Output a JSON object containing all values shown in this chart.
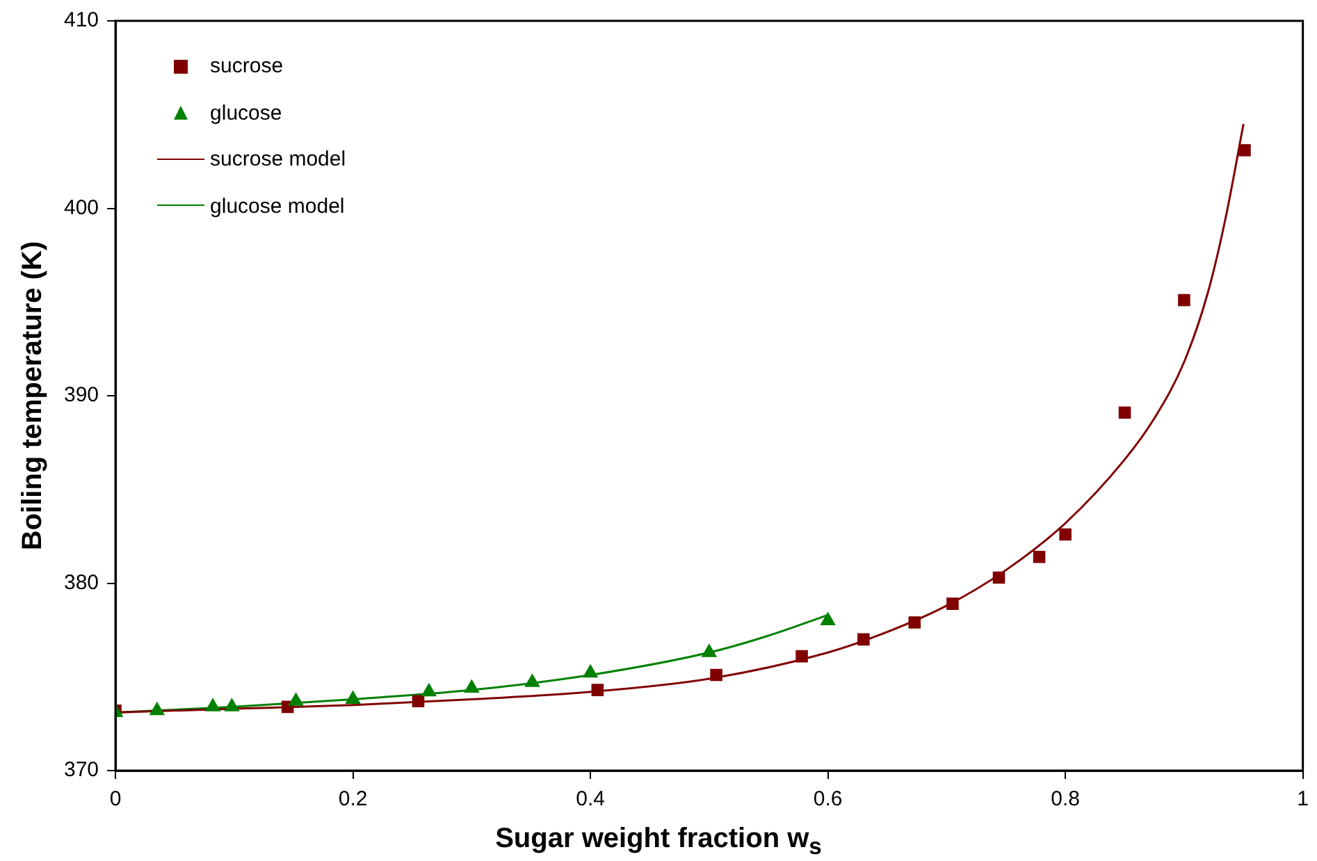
{
  "chart_data": {
    "type": "scatter",
    "xlabel": "Sugar weight fraction w$_{s}$",
    "ylabel": "Boiling temperature (K)",
    "xlim": [
      0,
      1
    ],
    "xticks": [
      0,
      0.2,
      0.4,
      0.6,
      0.8,
      1
    ],
    "ylim": [
      370,
      410
    ],
    "yticks": [
      370,
      380,
      390,
      400,
      410
    ],
    "grid": false,
    "legend": "top left",
    "series": [
      {
        "name": "sucrose",
        "type": "scatter",
        "marker": "square",
        "color": "#800000",
        "x": [
          0,
          0.145,
          0.255,
          0.406,
          0.506,
          0.578,
          0.63,
          0.673,
          0.705,
          0.744,
          0.778,
          0.8,
          0.85,
          0.9,
          0.951
        ],
        "values": [
          373.2,
          373.4,
          373.7,
          374.3,
          375.1,
          376.1,
          377.0,
          377.9,
          378.9,
          380.3,
          381.4,
          382.6,
          389.1,
          395.1,
          403.1
        ]
      },
      {
        "name": "glucose",
        "type": "scatter",
        "marker": "triangle",
        "color": "#008000",
        "x": [
          0,
          0.035,
          0.082,
          0.098,
          0.152,
          0.2,
          0.264,
          0.3,
          0.351,
          0.4,
          0.5,
          0.6
        ],
        "values": [
          373.1,
          373.2,
          373.4,
          373.4,
          373.7,
          373.8,
          374.2,
          374.4,
          374.7,
          375.2,
          376.3,
          378.0
        ]
      },
      {
        "name": "sucrose model",
        "type": "line",
        "marker": "none",
        "color": "#800000",
        "x": [
          0,
          0.1,
          0.2,
          0.3,
          0.4,
          0.5,
          0.6,
          0.65,
          0.7,
          0.75,
          0.8,
          0.85,
          0.875,
          0.9,
          0.92,
          0.935,
          0.95
        ],
        "values": [
          373.1,
          373.3,
          373.5,
          373.8,
          374.2,
          374.9,
          376.3,
          377.4,
          378.8,
          380.7,
          383.2,
          386.6,
          388.8,
          391.8,
          395.5,
          399.5,
          404.5
        ]
      },
      {
        "name": "glucose model",
        "type": "line",
        "marker": "none",
        "color": "#008000",
        "x": [
          0,
          0.1,
          0.2,
          0.3,
          0.4,
          0.5,
          0.55,
          0.6
        ],
        "values": [
          373.1,
          373.4,
          373.8,
          374.3,
          375.1,
          376.3,
          377.2,
          378.3
        ]
      }
    ]
  }
}
